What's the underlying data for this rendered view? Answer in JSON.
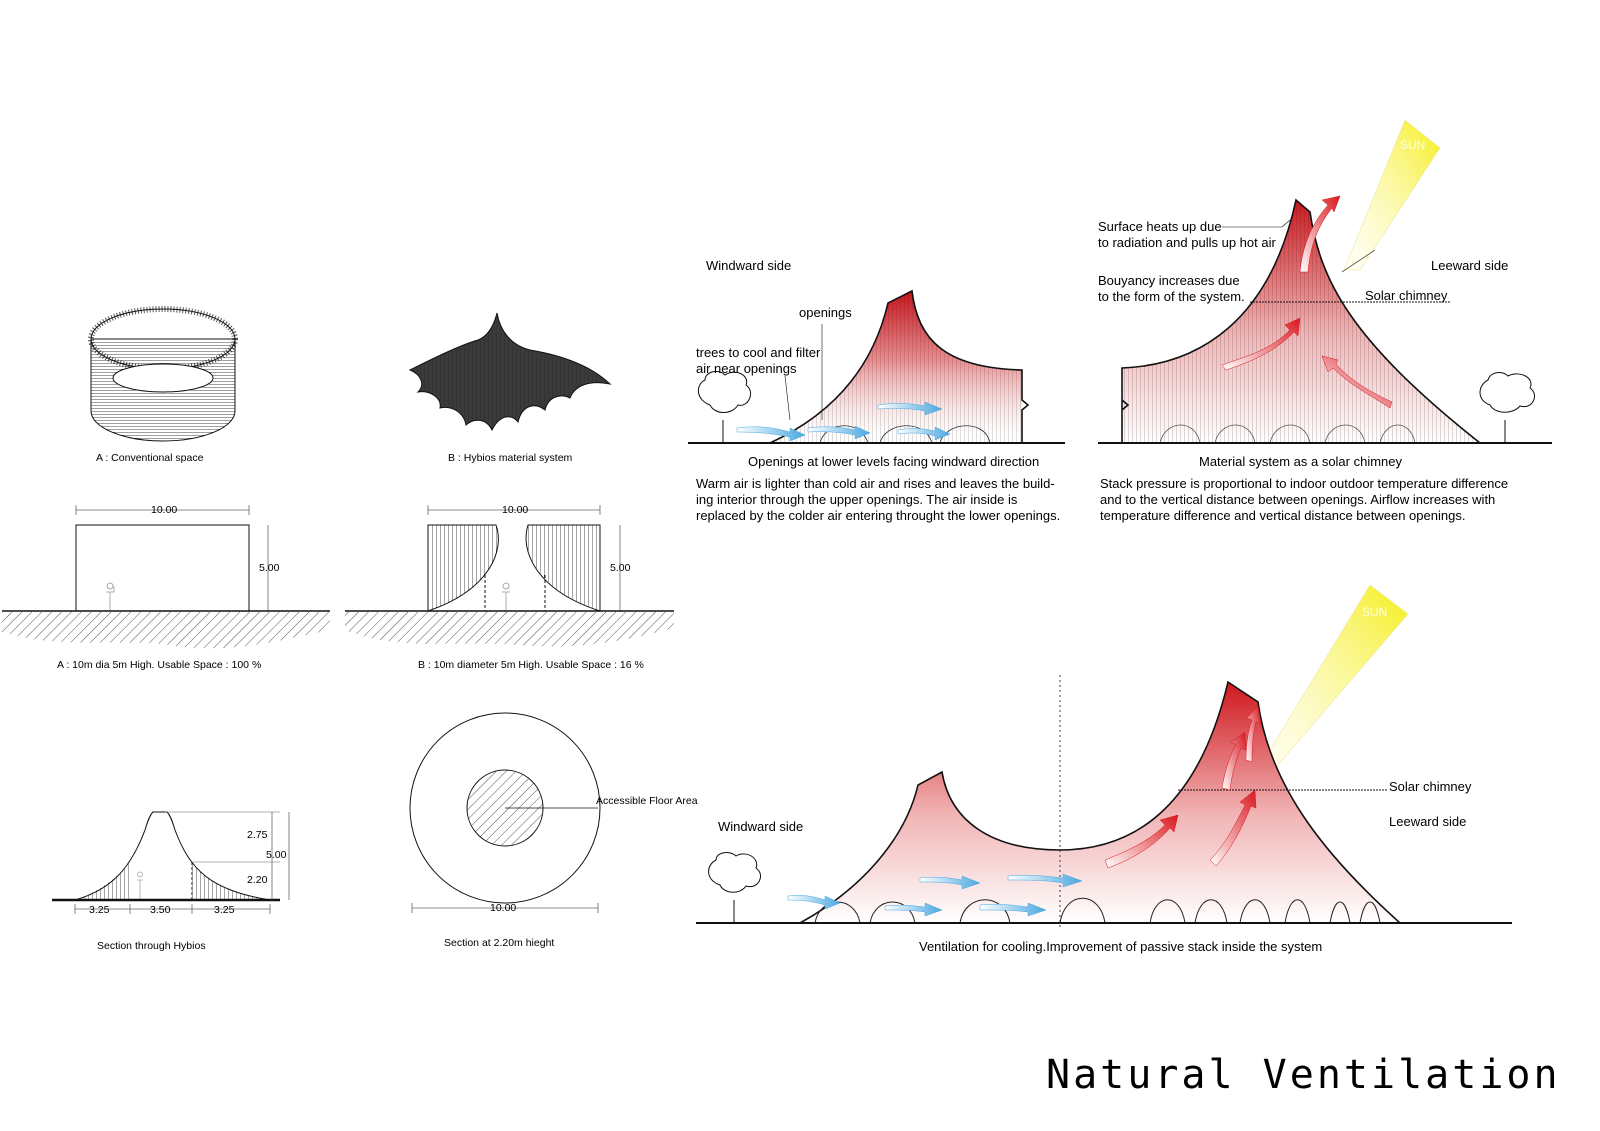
{
  "title": "Natural Ventilation",
  "panel_a": {
    "caption": "A : Conventional space",
    "section_caption": "A : 10m dia 5m High. Usable Space : 100 %",
    "width_dim": "10.00",
    "height_dim": "5.00"
  },
  "panel_b": {
    "caption": "B : Hybios material system",
    "section_caption": "B : 10m diameter 5m High. Usable Space : 16 %",
    "width_dim": "10.00",
    "height_dim": "5.00"
  },
  "section_hybios": {
    "caption": "Section through Hybios",
    "dims": [
      "2.75",
      "5.00",
      "2.20",
      "3.25",
      "3.50",
      "3.25"
    ]
  },
  "section_plan": {
    "caption": "Section at 2.20m hieght",
    "area_label": "Accessible Floor Area",
    "diameter": "10.00"
  },
  "diagram_windward": {
    "windward_label": "Windward side",
    "openings_label": "openings",
    "trees_label": "trees to cool and filter\nair near openings",
    "caption": "Openings at lower levels facing windward direction",
    "body": "Warm air is lighter than cold air and rises and leaves the build-\ning interior through the upper openings. The air inside is\nreplaced by the colder air entering throught the lower openings."
  },
  "diagram_chimney": {
    "surface_label": "Surface heats up due\nto radiation and pulls up hot air",
    "bouyancy_label": "Bouyancy increases due\nto the form of the system.",
    "solar_chimney_label": "Solar chimney",
    "leeward_label": "Leeward side",
    "sun_label": "SUN",
    "caption": "Material system as a solar chimney",
    "body": "Stack pressure is proportional to indoor outdoor temperature difference\nand to the vertical distance between openings. Airflow increases with\ntemperature difference and vertical distance between openings."
  },
  "diagram_combined": {
    "windward_label": "Windward side",
    "leeward_label": "Leeward side",
    "solar_chimney_label": "Solar chimney",
    "sun_label": "SUN",
    "caption": "Ventilation for cooling.Improvement of passive stack inside the system"
  },
  "colors": {
    "warm_red": "#d21f24",
    "cool_blue": "#5bb7e8",
    "sun_yellow": "#f7f226",
    "ink": "#111111"
  }
}
